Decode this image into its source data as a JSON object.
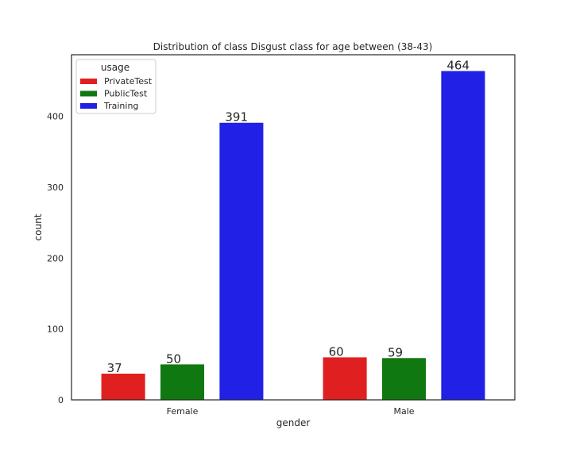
{
  "chart_data": {
    "type": "bar",
    "title": "Distribution of class Disgust class for age between (38-43)",
    "xlabel": "gender",
    "ylabel": "count",
    "categories": [
      "Female",
      "Male"
    ],
    "ylim": [
      0,
      487
    ],
    "yticks": [
      0,
      100,
      200,
      300,
      400
    ],
    "grid": false,
    "legend": {
      "title": "usage",
      "placement": "top-left"
    },
    "series": [
      {
        "name": "PrivateTest",
        "color": "#e02020",
        "values": [
          37,
          60
        ]
      },
      {
        "name": "PublicTest",
        "color": "#107810",
        "values": [
          50,
          59
        ]
      },
      {
        "name": "Training",
        "color": "#2020e6",
        "values": [
          391,
          464
        ]
      }
    ],
    "data_labels": [
      [
        "37",
        "50",
        "391"
      ],
      [
        "60",
        "59",
        "464"
      ]
    ]
  }
}
